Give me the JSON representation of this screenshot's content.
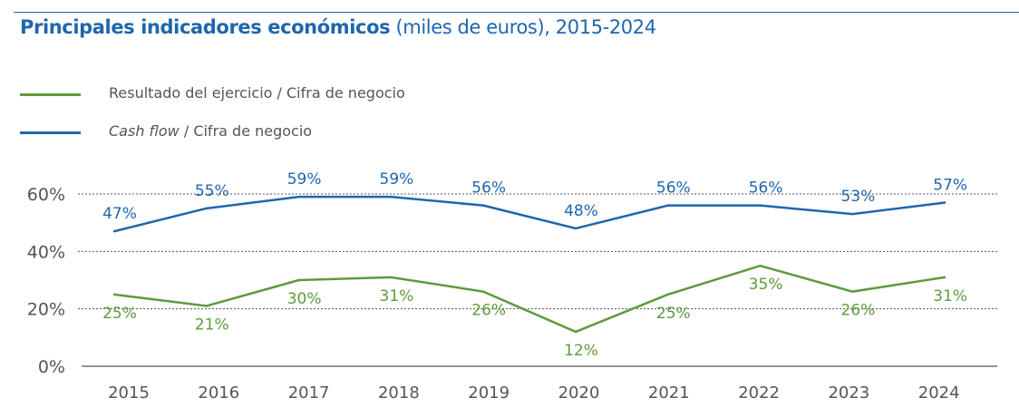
{
  "chart_data": {
    "type": "line",
    "title_bold": "Principales indicadores económicos",
    "title_rest": " (miles de euros), 2015-2024",
    "categories": [
      "2015",
      "2016",
      "2017",
      "2018",
      "2019",
      "2020",
      "2021",
      "2022",
      "2023",
      "2024"
    ],
    "ylim": [
      0,
      60
    ],
    "yticks": [
      "0%",
      "20%",
      "40%",
      "60%"
    ],
    "ytick_values": [
      0,
      20,
      40,
      60
    ],
    "grid": "horizontal dotted",
    "legend_position": "top-left",
    "series": [
      {
        "name": "Resultado del ejercicio / Cifra de negocio",
        "name_italic": "",
        "color": "#5d9b3d",
        "values": [
          25,
          21,
          30,
          31,
          26,
          12,
          25,
          35,
          26,
          31
        ],
        "labels": [
          "25%",
          "21%",
          "30%",
          "31%",
          "26%",
          "12%",
          "25%",
          "35%",
          "26%",
          "31%"
        ]
      },
      {
        "name": " / Cifra de negocio",
        "name_italic": "Cash flow",
        "color": "#1f66ad",
        "values": [
          47,
          55,
          59,
          59,
          56,
          48,
          56,
          56,
          53,
          57
        ],
        "labels": [
          "47%",
          "55%",
          "59%",
          "59%",
          "56%",
          "48%",
          "56%",
          "56%",
          "53%",
          "57%"
        ]
      }
    ]
  }
}
